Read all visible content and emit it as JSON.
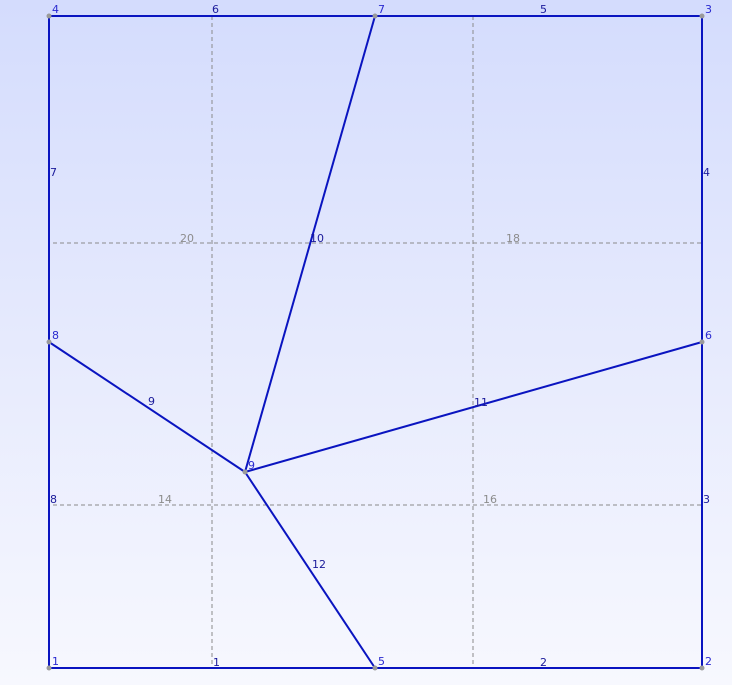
{
  "nodes": [
    {
      "id": "1",
      "label": "1"
    },
    {
      "id": "2",
      "label": "2"
    },
    {
      "id": "3",
      "label": "3"
    },
    {
      "id": "4",
      "label": "4"
    },
    {
      "id": "5",
      "label": "5"
    },
    {
      "id": "6",
      "label": "6"
    },
    {
      "id": "7",
      "label": "7"
    },
    {
      "id": "8",
      "label": "8"
    },
    {
      "id": "9",
      "label": "9"
    }
  ],
  "edges": [
    {
      "id": "1",
      "from": "1",
      "to": "5",
      "label": "1"
    },
    {
      "id": "2",
      "from": "5",
      "to": "2",
      "label": "2"
    },
    {
      "id": "3",
      "from": "2",
      "to": "6",
      "label": "3"
    },
    {
      "id": "4",
      "from": "6",
      "to": "3",
      "label": "4"
    },
    {
      "id": "5",
      "from": "3",
      "to": "7",
      "label": "5"
    },
    {
      "id": "6",
      "from": "7",
      "to": "4",
      "label": "6"
    },
    {
      "id": "7",
      "from": "4",
      "to": "8",
      "label": "7"
    },
    {
      "id": "8",
      "from": "8",
      "to": "1",
      "label": "8"
    },
    {
      "id": "9",
      "from": "8",
      "to": "9",
      "label": "9"
    },
    {
      "id": "10",
      "from": "9",
      "to": "7",
      "label": "10"
    },
    {
      "id": "11",
      "from": "9",
      "to": "6",
      "label": "11"
    },
    {
      "id": "12",
      "from": "9",
      "to": "5",
      "label": "12"
    }
  ],
  "helper_lines": [
    {
      "id": "14",
      "label": "14"
    },
    {
      "id": "16",
      "label": "16"
    },
    {
      "id": "18",
      "label": "18"
    },
    {
      "id": "20",
      "label": "20"
    },
    {
      "id": "v1",
      "label": ""
    },
    {
      "id": "v2",
      "label": ""
    }
  ],
  "colors": {
    "edge": "#0a14c0",
    "helper": "#8a8a8a",
    "background_top": "#d4dcfd",
    "background_bottom": "#f7f8fe"
  }
}
